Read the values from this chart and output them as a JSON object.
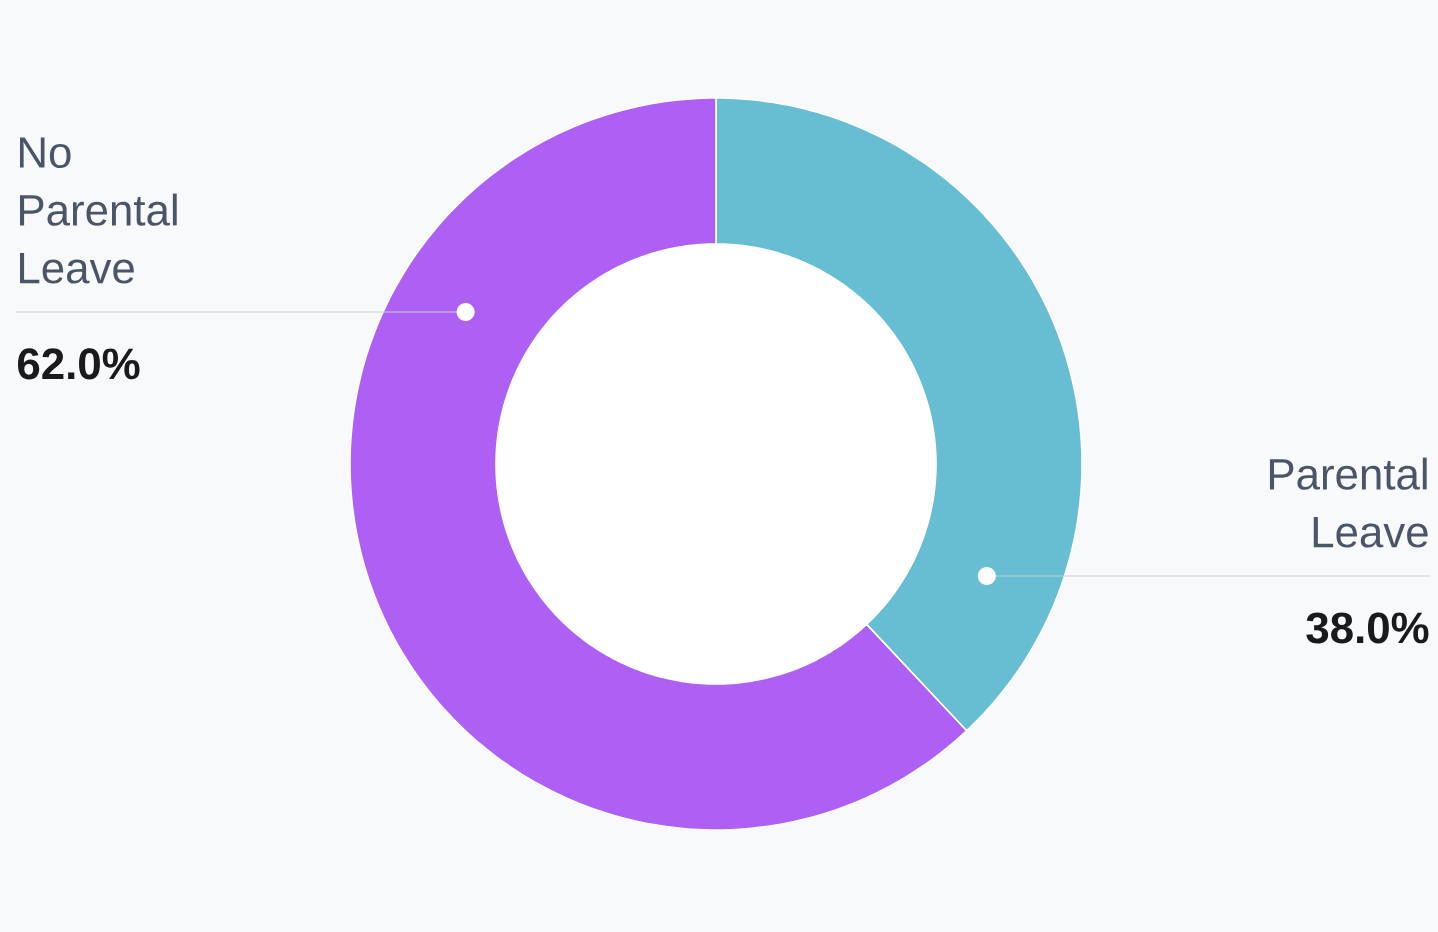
{
  "chart_data": {
    "type": "donut",
    "categories": [
      "Parental Leave",
      "No Parental Leave"
    ],
    "values": [
      38.0,
      62.0
    ],
    "value_labels": [
      "38.0%",
      "62.0%"
    ],
    "colors": [
      "#67bed3",
      "#ad60f3"
    ]
  }
}
